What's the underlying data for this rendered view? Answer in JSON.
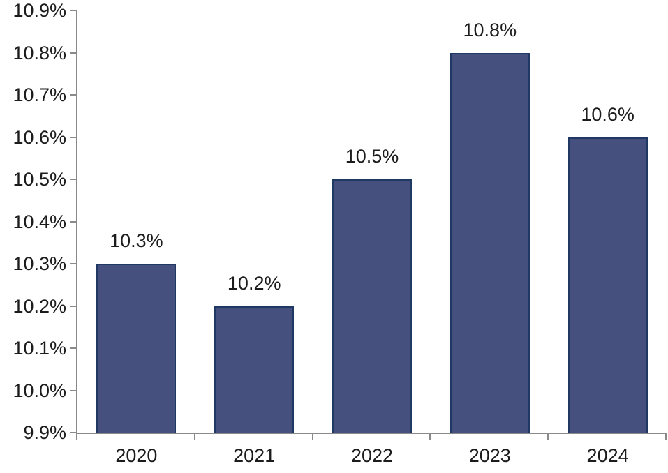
{
  "chart_data": {
    "type": "bar",
    "categories": [
      "2020",
      "2021",
      "2022",
      "2023",
      "2024"
    ],
    "values": [
      10.3,
      10.2,
      10.5,
      10.8,
      10.6
    ],
    "value_labels": [
      "10.3%",
      "10.2%",
      "10.5%",
      "10.8%",
      "10.6%"
    ],
    "title": "",
    "xlabel": "",
    "ylabel": "",
    "ylim": [
      9.9,
      10.9
    ],
    "ytick_step": 0.1,
    "ytick_labels": [
      "9.9%",
      "10.0%",
      "10.1%",
      "10.2%",
      "10.3%",
      "10.4%",
      "10.5%",
      "10.6%",
      "10.7%",
      "10.8%",
      "10.9%"
    ],
    "grid": false,
    "legend": "none"
  },
  "colors": {
    "bar_fill": "#45507E",
    "bar_border": "#1F3864",
    "axis": "#8A8A8A",
    "text": "#1C1C1C",
    "background": "#FFFFFF"
  }
}
